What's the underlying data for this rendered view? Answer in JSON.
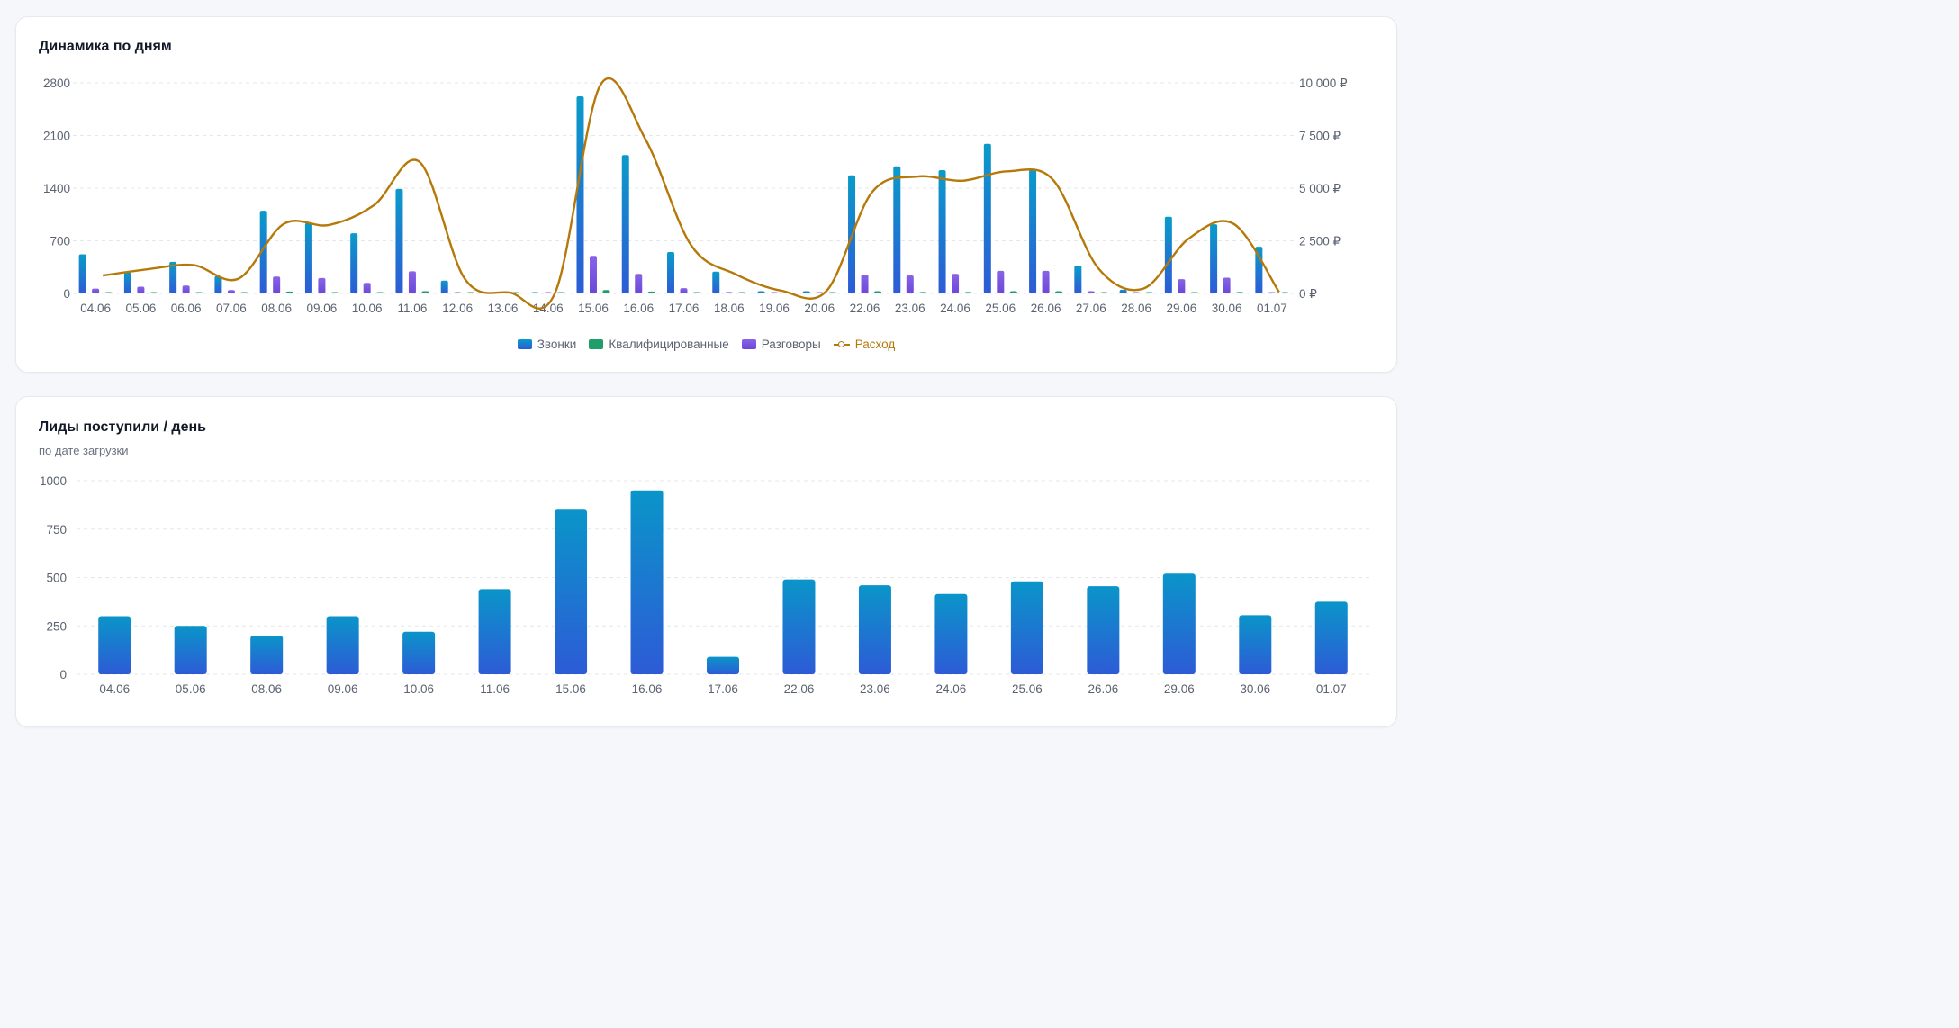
{
  "cards": {
    "daily": {
      "title": "Динамика по дням"
    },
    "leads": {
      "title": "Лиды поступили / день",
      "subtitle": "по дате загрузки"
    }
  },
  "colors": {
    "calls_top": "#0a9bc9",
    "calls_bottom": "#2d5bd6",
    "qualified": "#1f9e6a",
    "talks_top": "#8a63e6",
    "talks_bottom": "#6a48d8",
    "spend": "#b5790a",
    "leads_top": "#0a95c9",
    "leads_bottom": "#2d5bd6"
  },
  "chart_data": [
    {
      "type": "bar",
      "categories": [
        "04.06",
        "05.06",
        "06.06",
        "07.06",
        "08.06",
        "09.06",
        "10.06",
        "11.06",
        "12.06",
        "13.06",
        "14.06",
        "15.06",
        "16.06",
        "17.06",
        "18.06",
        "19.06",
        "20.06",
        "22.06",
        "23.06",
        "24.06",
        "25.06",
        "26.06",
        "27.06",
        "28.06",
        "29.06",
        "30.06",
        "01.07"
      ],
      "series": [
        {
          "name": "Звонки",
          "axis": "left",
          "values": [
            520,
            280,
            420,
            230,
            1100,
            940,
            800,
            1390,
            170,
            0,
            0,
            2620,
            1840,
            550,
            290,
            30,
            30,
            1570,
            1690,
            1640,
            1990,
            1650,
            370,
            50,
            1020,
            920,
            620
          ]
        },
        {
          "name": "Квалифицированные",
          "axis": "left",
          "values": [
            5,
            5,
            5,
            0,
            25,
            15,
            15,
            30,
            0,
            0,
            0,
            45,
            25,
            5,
            5,
            0,
            0,
            30,
            20,
            20,
            30,
            30,
            10,
            0,
            10,
            20,
            10
          ]
        },
        {
          "name": "Разговоры",
          "axis": "left",
          "values": [
            65,
            90,
            105,
            45,
            225,
            205,
            140,
            295,
            10,
            0,
            0,
            500,
            260,
            70,
            20,
            0,
            0,
            250,
            240,
            260,
            300,
            300,
            30,
            0,
            190,
            210,
            15
          ]
        },
        {
          "name": "Расход",
          "axis": "right",
          "type": "line",
          "values": [
            850,
            1150,
            1350,
            700,
            3300,
            3250,
            4200,
            6250,
            700,
            40,
            40,
            9900,
            7300,
            2300,
            900,
            130,
            130,
            4800,
            5550,
            5350,
            5800,
            5400,
            1200,
            230,
            2600,
            3300,
            60
          ]
        }
      ],
      "yticks_left": [
        "0",
        "700",
        "1400",
        "2100",
        "2800"
      ],
      "yticks_right": [
        "0 ₽",
        "2 500 ₽",
        "5 000 ₽",
        "7 500 ₽",
        "10 000 ₽"
      ],
      "ylim_left": [
        0,
        2800
      ],
      "ylim_right": [
        0,
        10000
      ],
      "legend": "bottom-center",
      "grid": true
    },
    {
      "type": "bar",
      "categories": [
        "04.06",
        "05.06",
        "08.06",
        "09.06",
        "10.06",
        "11.06",
        "15.06",
        "16.06",
        "17.06",
        "22.06",
        "23.06",
        "24.06",
        "25.06",
        "26.06",
        "29.06",
        "30.06",
        "01.07"
      ],
      "series": [
        {
          "values": [
            300,
            250,
            200,
            300,
            220,
            440,
            850,
            950,
            90,
            490,
            460,
            415,
            480,
            455,
            520,
            305,
            375
          ]
        }
      ],
      "yticks": [
        "0",
        "250",
        "500",
        "750",
        "1000"
      ],
      "ylim": [
        0,
        1000
      ],
      "grid": true
    }
  ]
}
